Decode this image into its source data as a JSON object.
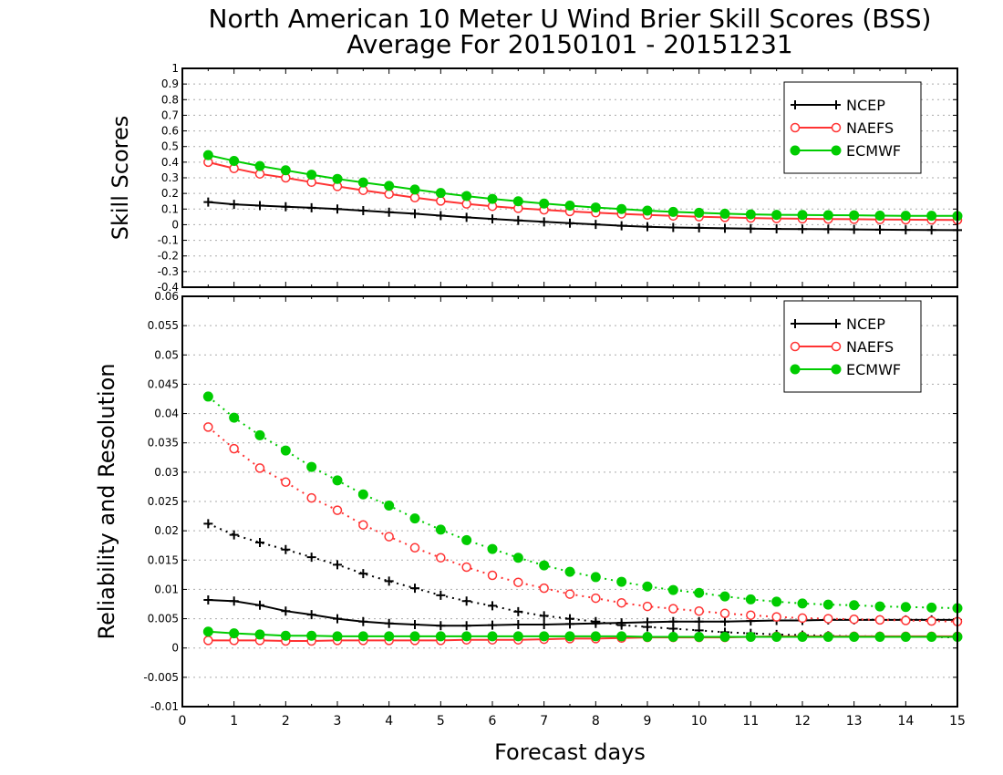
{
  "title_line1": "North American 10 Meter U Wind Brier Skill Scores (BSS)",
  "title_line2": "Average For 20150101 - 20151231",
  "colors": {
    "NCEP": "#000000",
    "NAEFS": "#ff3333",
    "ECMWF": "#00cc00"
  },
  "chart_data": [
    {
      "type": "line",
      "ylabel": "Skill Scores",
      "xlim": [
        0,
        15
      ],
      "ylim": [
        -0.4,
        1
      ],
      "yticks": [
        "-0.4",
        "-0.3",
        "-0.2",
        "-0.1",
        "0",
        "0.1",
        "0.2",
        "0.3",
        "0.4",
        "0.5",
        "0.6",
        "0.7",
        "0.8",
        "0.9",
        "1"
      ],
      "legend_position": "top-right",
      "legend": [
        "NCEP",
        "NAEFS",
        "ECMWF"
      ],
      "x": [
        0.5,
        1,
        1.5,
        2,
        2.5,
        3,
        3.5,
        4,
        4.5,
        5,
        5.5,
        6,
        6.5,
        7,
        7.5,
        8,
        8.5,
        9,
        9.5,
        10,
        10.5,
        11,
        11.5,
        12,
        12.5,
        13,
        13.5,
        14,
        14.5,
        15
      ],
      "series": [
        {
          "name": "NCEP",
          "style": "solid",
          "marker": "plus",
          "values": [
            0.145,
            0.13,
            0.122,
            0.115,
            0.108,
            0.1,
            0.09,
            0.08,
            0.07,
            0.058,
            0.047,
            0.037,
            0.027,
            0.018,
            0.01,
            0.002,
            -0.007,
            -0.013,
            -0.018,
            -0.02,
            -0.023,
            -0.025,
            -0.027,
            -0.028,
            -0.029,
            -0.03,
            -0.032,
            -0.033,
            -0.034,
            -0.035
          ]
        },
        {
          "name": "NAEFS",
          "style": "solid",
          "marker": "open-circle",
          "values": [
            0.4,
            0.36,
            0.325,
            0.3,
            0.272,
            0.245,
            0.22,
            0.196,
            0.173,
            0.152,
            0.133,
            0.118,
            0.105,
            0.095,
            0.085,
            0.077,
            0.069,
            0.062,
            0.056,
            0.051,
            0.047,
            0.043,
            0.04,
            0.038,
            0.036,
            0.035,
            0.033,
            0.032,
            0.031,
            0.03
          ]
        },
        {
          "name": "ECMWF",
          "style": "solid",
          "marker": "filled-circle",
          "values": [
            0.445,
            0.408,
            0.375,
            0.348,
            0.32,
            0.293,
            0.27,
            0.248,
            0.225,
            0.203,
            0.183,
            0.165,
            0.15,
            0.135,
            0.122,
            0.11,
            0.1,
            0.09,
            0.082,
            0.076,
            0.07,
            0.066,
            0.063,
            0.062,
            0.061,
            0.06,
            0.058,
            0.057,
            0.057,
            0.056
          ]
        }
      ]
    },
    {
      "type": "line",
      "ylabel": "Reliability and Resolution",
      "xlabel": "Forecast days",
      "xlim": [
        0,
        15
      ],
      "ylim": [
        -0.01,
        0.06
      ],
      "yticks": [
        "-0.01",
        "-0.005",
        "0",
        "0.005",
        "0.01",
        "0.015",
        "0.02",
        "0.025",
        "0.03",
        "0.035",
        "0.04",
        "0.045",
        "0.05",
        "0.055",
        "0.06"
      ],
      "xticks": [
        "0",
        "1",
        "2",
        "3",
        "4",
        "5",
        "6",
        "7",
        "8",
        "9",
        "10",
        "11",
        "12",
        "13",
        "14",
        "15"
      ],
      "legend_position": "top-right",
      "legend": [
        "NCEP",
        "NAEFS",
        "ECMWF"
      ],
      "x": [
        0.5,
        1,
        1.5,
        2,
        2.5,
        3,
        3.5,
        4,
        4.5,
        5,
        5.5,
        6,
        6.5,
        7,
        7.5,
        8,
        8.5,
        9,
        9.5,
        10,
        10.5,
        11,
        11.5,
        12,
        12.5,
        13,
        13.5,
        14,
        14.5,
        15
      ],
      "series": [
        {
          "name": "NCEP",
          "role": "reliability",
          "style": "solid",
          "marker": "plus",
          "values": [
            0.0082,
            0.008,
            0.0073,
            0.0063,
            0.0057,
            0.005,
            0.0045,
            0.0042,
            0.004,
            0.0038,
            0.0038,
            0.0039,
            0.004,
            0.004,
            0.0041,
            0.0042,
            0.0043,
            0.0044,
            0.0045,
            0.0045,
            0.0045,
            0.0046,
            0.0047,
            0.0047,
            0.0048,
            0.0048,
            0.0048,
            0.0048,
            0.0048,
            0.0048
          ]
        },
        {
          "name": "NCEP",
          "role": "resolution",
          "style": "dotted",
          "marker": "plus",
          "values": [
            0.0212,
            0.0193,
            0.018,
            0.0168,
            0.0155,
            0.0142,
            0.0127,
            0.0114,
            0.0102,
            0.009,
            0.008,
            0.0072,
            0.0062,
            0.0055,
            0.005,
            0.0045,
            0.0039,
            0.0036,
            0.0033,
            0.003,
            0.0027,
            0.0025,
            0.0023,
            0.0022,
            0.0021,
            0.002,
            0.002,
            0.0019,
            0.0019,
            0.0018
          ]
        },
        {
          "name": "NAEFS",
          "role": "reliability",
          "style": "solid",
          "marker": "open-circle",
          "values": [
            0.0013,
            0.0013,
            0.0013,
            0.0012,
            0.0012,
            0.0013,
            0.0013,
            0.0013,
            0.0013,
            0.0013,
            0.0014,
            0.0014,
            0.0014,
            0.0015,
            0.0016,
            0.0016,
            0.0017,
            0.0018,
            0.0018,
            0.0018,
            0.0018,
            0.0019,
            0.002,
            0.002,
            0.002,
            0.002,
            0.002,
            0.002,
            0.002,
            0.002
          ]
        },
        {
          "name": "NAEFS",
          "role": "resolution",
          "style": "dotted",
          "marker": "open-circle",
          "values": [
            0.0377,
            0.034,
            0.0307,
            0.0283,
            0.0256,
            0.0235,
            0.021,
            0.019,
            0.0171,
            0.0154,
            0.0138,
            0.0124,
            0.0112,
            0.0102,
            0.0092,
            0.0085,
            0.0077,
            0.0071,
            0.0067,
            0.0063,
            0.0059,
            0.0056,
            0.0053,
            0.0051,
            0.005,
            0.0049,
            0.0048,
            0.0047,
            0.0046,
            0.0045
          ]
        },
        {
          "name": "ECMWF",
          "role": "reliability",
          "style": "solid",
          "marker": "filled-circle",
          "values": [
            0.0028,
            0.0025,
            0.0023,
            0.0021,
            0.0021,
            0.002,
            0.002,
            0.002,
            0.002,
            0.002,
            0.002,
            0.002,
            0.002,
            0.002,
            0.002,
            0.002,
            0.002,
            0.0019,
            0.0019,
            0.0019,
            0.0019,
            0.0019,
            0.0019,
            0.0019,
            0.0019,
            0.0019,
            0.0019,
            0.0019,
            0.0019,
            0.0019
          ]
        },
        {
          "name": "ECMWF",
          "role": "resolution",
          "style": "dotted",
          "marker": "filled-circle",
          "values": [
            0.0429,
            0.0393,
            0.0363,
            0.0337,
            0.0309,
            0.0286,
            0.0262,
            0.0243,
            0.0221,
            0.0202,
            0.0184,
            0.0169,
            0.0154,
            0.0141,
            0.013,
            0.0121,
            0.0113,
            0.0105,
            0.0099,
            0.0094,
            0.0088,
            0.0083,
            0.0079,
            0.0076,
            0.0074,
            0.0073,
            0.0071,
            0.007,
            0.0069,
            0.0068
          ]
        }
      ]
    }
  ]
}
